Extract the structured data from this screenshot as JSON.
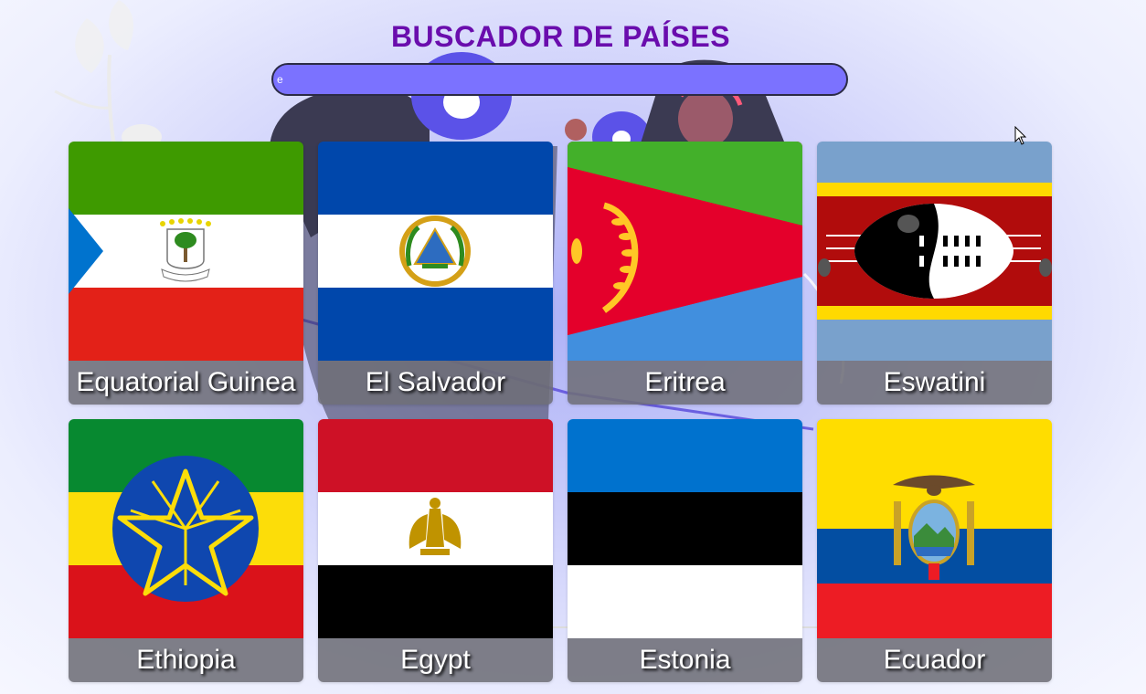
{
  "page": {
    "title": "BUSCADOR DE PAÍSES"
  },
  "search": {
    "value": "e",
    "placeholder": ""
  },
  "countries": [
    {
      "name": "Equatorial Guinea",
      "flag": "equatorial-guinea-flag"
    },
    {
      "name": "El Salvador",
      "flag": "el-salvador-flag"
    },
    {
      "name": "Eritrea",
      "flag": "eritrea-flag"
    },
    {
      "name": "Eswatini",
      "flag": "eswatini-flag"
    },
    {
      "name": "Ethiopia",
      "flag": "ethiopia-flag"
    },
    {
      "name": "Egypt",
      "flag": "egypt-flag"
    },
    {
      "name": "Estonia",
      "flag": "estonia-flag"
    },
    {
      "name": "Ecuador",
      "flag": "ecuador-flag"
    }
  ],
  "colors": {
    "title": "#6a0dad",
    "search_bg": "#7b72ff",
    "label_bg": "#6e6e78"
  }
}
